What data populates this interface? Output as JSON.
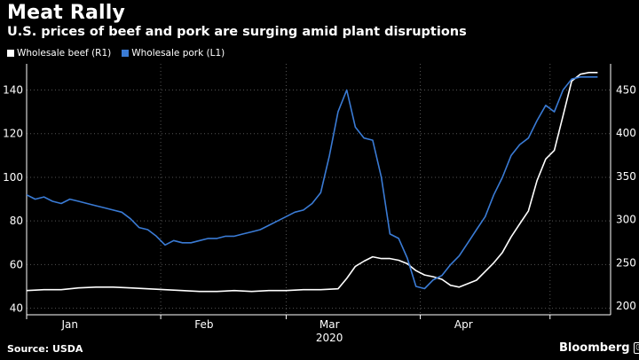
{
  "title": "Meat Rally",
  "subtitle": "U.S. prices of beef and pork are surging amid plant disruptions",
  "source": "Source: USDA",
  "brand": "Bloomberg",
  "brand_badge": "ⓘ",
  "colors": {
    "beef": "#ffffff",
    "pork": "#3a7bd5",
    "grid": "#555555",
    "axis": "#ffffff"
  },
  "chart_data": {
    "type": "line",
    "title": "Meat Rally",
    "subtitle": "U.S. prices of beef and pork are surging amid plant disruptions",
    "grid": true,
    "legend_position": "top-left",
    "x_ticks": [
      {
        "label": "Jan",
        "x": 10
      },
      {
        "label": "Feb",
        "x": 41
      },
      {
        "label": "Mar",
        "x": 70
      },
      {
        "label": "Apr",
        "x": 101
      }
    ],
    "x_group_label": "2020",
    "x_gridlines": [
      0,
      31,
      60,
      91,
      121
    ],
    "xlim": [
      0,
      135
    ],
    "y_left": {
      "ticks": [
        40,
        60,
        80,
        100,
        120,
        140
      ],
      "lim": [
        37,
        152
      ]
    },
    "y_right": {
      "ticks": [
        200,
        250,
        300,
        350,
        400,
        450
      ],
      "lim": [
        190,
        480
      ]
    },
    "series": [
      {
        "name": "Wholesale beef (R1)",
        "axis": "right",
        "color": "#ffffff",
        "x": [
          -4,
          0,
          4,
          8,
          12,
          16,
          20,
          24,
          28,
          32,
          36,
          40,
          44,
          48,
          52,
          56,
          60,
          64,
          68,
          72,
          74,
          76,
          78,
          80,
          82,
          84,
          86,
          88,
          90,
          92,
          94,
          96,
          98,
          100,
          102,
          104,
          106,
          108,
          110,
          112,
          114,
          116,
          118,
          120,
          122,
          124,
          126,
          128,
          130,
          132
        ],
        "y": [
          218,
          218,
          219,
          219,
          221,
          222,
          222,
          221,
          220,
          219,
          218,
          217,
          217,
          218,
          217,
          218,
          218,
          219,
          219,
          220,
          232,
          246,
          252,
          257,
          255,
          255,
          253,
          249,
          241,
          236,
          234,
          231,
          224,
          222,
          226,
          230,
          240,
          250,
          262,
          280,
          295,
          310,
          345,
          370,
          380,
          420,
          460,
          468,
          470,
          470
        ]
      },
      {
        "name": "Wholesale pork (L1)",
        "axis": "left",
        "color": "#3a7bd5",
        "x": [
          -4,
          -2,
          0,
          2,
          4,
          6,
          8,
          10,
          12,
          14,
          16,
          18,
          20,
          22,
          24,
          26,
          28,
          30,
          32,
          34,
          36,
          38,
          40,
          42,
          44,
          46,
          48,
          50,
          52,
          54,
          56,
          58,
          60,
          62,
          64,
          66,
          68,
          70,
          72,
          74,
          76,
          78,
          80,
          82,
          84,
          86,
          88,
          90,
          92,
          94,
          96,
          98,
          100,
          102,
          104,
          106,
          108,
          110,
          112,
          114,
          116,
          118,
          120,
          122,
          124,
          126,
          128,
          130,
          132
        ],
        "y": [
          93,
          92,
          92,
          90,
          91,
          89,
          88,
          90,
          89,
          88,
          87,
          86,
          85,
          84,
          81,
          77,
          76,
          73,
          69,
          71,
          70,
          70,
          71,
          72,
          72,
          73,
          73,
          74,
          75,
          76,
          78,
          80,
          82,
          84,
          85,
          88,
          93,
          110,
          130,
          140,
          123,
          118,
          117,
          100,
          74,
          72,
          63,
          50,
          49,
          53,
          55,
          60,
          64,
          70,
          76,
          82,
          92,
          100,
          110,
          115,
          118,
          126,
          133,
          130,
          140,
          145,
          146,
          146,
          146
        ]
      }
    ]
  }
}
